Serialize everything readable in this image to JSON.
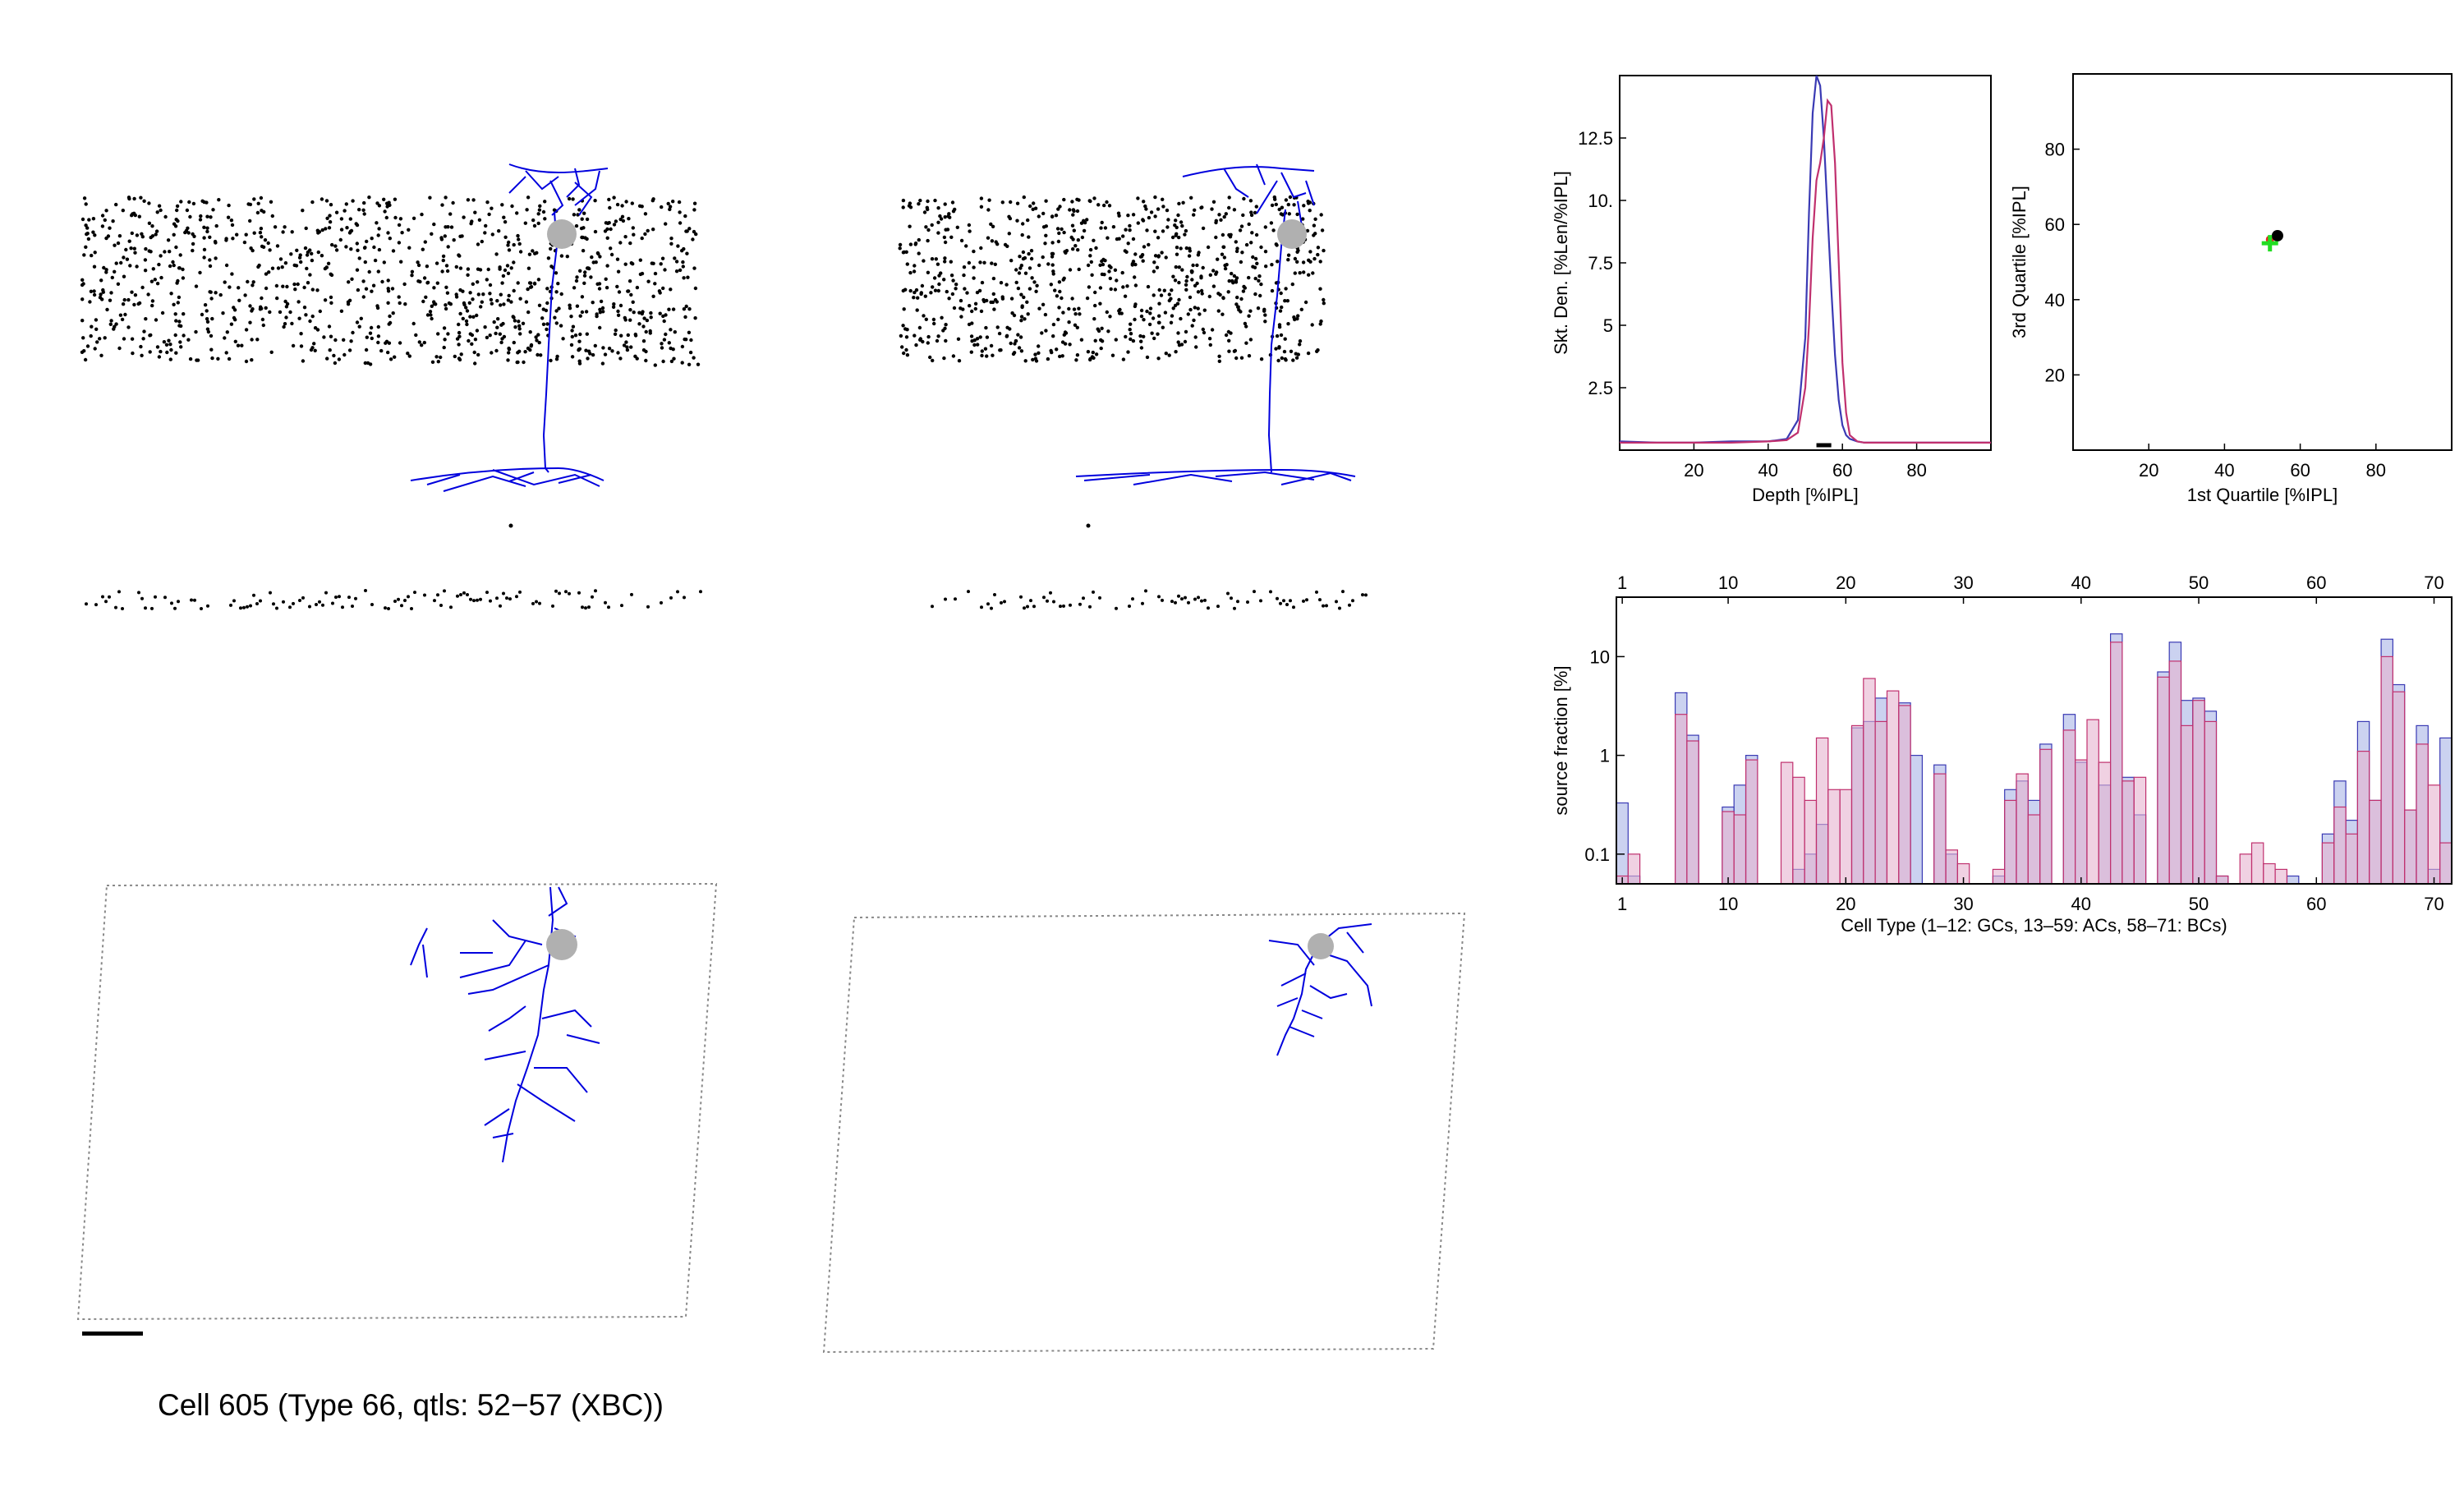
{
  "caption": "Cell 605 (Type 66, qtls: 52−57 (XBC))",
  "colors": {
    "neuron": "#0000dd",
    "soma": "#b0b0b0",
    "dots": "#000000",
    "series_a": "#3a3ab4",
    "series_b": "#c0306e",
    "hist_a_fill": "#a9b4e6",
    "hist_b_fill": "#e6b3cf",
    "centroid_green": "#22dd22",
    "centroid_red": "#ee2222"
  },
  "chart_data": [
    {
      "type": "line",
      "xlabel": "Depth [%IPL]",
      "ylabel": "Skt. Den. [%Len/%IPL]",
      "xticks": [
        20,
        40,
        60,
        80
      ],
      "yticks": [
        2.5,
        5,
        7.5,
        10,
        12.5
      ],
      "ytick_labels": [
        "2.5",
        "5",
        "7.5",
        "10.",
        "12.5"
      ],
      "xlim": [
        0,
        100
      ],
      "ylim": [
        0,
        15
      ],
      "series": [
        {
          "color": "#3a3ab4",
          "x": [
            0,
            10,
            20,
            30,
            40,
            45,
            48,
            50,
            51,
            52,
            53,
            54,
            55,
            56,
            57,
            58,
            59,
            60,
            61,
            62,
            64,
            66,
            70,
            80,
            90,
            100
          ],
          "y": [
            0.35,
            0.3,
            0.3,
            0.35,
            0.35,
            0.45,
            1.2,
            4.5,
            9.5,
            13.5,
            15.0,
            14.6,
            12.5,
            9.5,
            6.5,
            3.8,
            2.0,
            1.0,
            0.6,
            0.45,
            0.35,
            0.3,
            0.3,
            0.3,
            0.3,
            0.3
          ]
        },
        {
          "color": "#c0306e",
          "x": [
            0,
            10,
            20,
            30,
            40,
            45,
            48,
            50,
            51,
            52,
            53,
            54,
            55,
            56,
            57,
            58,
            59,
            60,
            61,
            62,
            64,
            66,
            70,
            80,
            90,
            100
          ],
          "y": [
            0.3,
            0.3,
            0.3,
            0.3,
            0.35,
            0.4,
            0.7,
            2.5,
            5.0,
            8.5,
            10.8,
            11.5,
            12.5,
            14.0,
            13.8,
            11.5,
            7.5,
            3.5,
            1.5,
            0.6,
            0.35,
            0.3,
            0.3,
            0.3,
            0.3,
            0.3
          ]
        }
      ],
      "marker_range": [
        53,
        57
      ]
    },
    {
      "type": "scatter",
      "xlabel": "1st Quartile [%IPL]",
      "ylabel": "3rd Quartile [%IPL]",
      "xticks": [
        20,
        40,
        60,
        80
      ],
      "yticks": [
        20,
        40,
        60,
        80
      ],
      "xlim": [
        0,
        100
      ],
      "ylim": [
        0,
        100
      ],
      "points": [
        {
          "x": 52,
          "y": 56,
          "color": "#ee2222"
        },
        {
          "x": 54,
          "y": 57,
          "color": "#000000"
        },
        {
          "x": 52,
          "y": 55,
          "color": "#22dd22"
        }
      ]
    },
    {
      "type": "bar",
      "xlabel": "Cell Type (1–12: GCs, 13–59: ACs, 58–71: BCs)",
      "ylabel": "source fraction [%]",
      "yscale": "log",
      "ylim": [
        0.05,
        40
      ],
      "yticks": [
        0.1,
        1,
        10
      ],
      "ytick_labels": [
        "0.1",
        "1",
        "10"
      ],
      "xticks": [
        1,
        10,
        20,
        30,
        40,
        50,
        60,
        70
      ],
      "categories": [
        1,
        2,
        3,
        4,
        5,
        6,
        7,
        8,
        9,
        10,
        11,
        12,
        13,
        14,
        15,
        16,
        17,
        18,
        19,
        20,
        21,
        22,
        23,
        24,
        25,
        26,
        27,
        28,
        29,
        30,
        31,
        32,
        33,
        34,
        35,
        36,
        37,
        38,
        39,
        40,
        41,
        42,
        43,
        44,
        45,
        46,
        47,
        48,
        49,
        50,
        51,
        52,
        53,
        54,
        55,
        56,
        57,
        58,
        59,
        60,
        61,
        62,
        63,
        64,
        65,
        66,
        67,
        68,
        69,
        70,
        71
      ],
      "series": [
        {
          "color": "#a9b4e6",
          "values": [
            0.33,
            0.06,
            0,
            0,
            0,
            4.3,
            1.6,
            0,
            0,
            0.3,
            0.5,
            1.0,
            0,
            0,
            0,
            0.07,
            0.1,
            0.2,
            0,
            0,
            1.9,
            2.2,
            3.8,
            0,
            3.4,
            1.0,
            0,
            0.8,
            0.1,
            0,
            0,
            0,
            0.06,
            0.45,
            0.55,
            0.35,
            1.3,
            0,
            2.6,
            0.85,
            0,
            0.5,
            17.0,
            0.6,
            0.25,
            0,
            7.0,
            14.0,
            3.6,
            3.8,
            2.8,
            0.06,
            0,
            0,
            0,
            0,
            0,
            0.06,
            0,
            0,
            0.16,
            0.55,
            0.22,
            2.2,
            0.35,
            15.0,
            5.2,
            0.28,
            2.0,
            0.07,
            1.5
          ]
        },
        {
          "color": "#e6b3cf",
          "values": [
            0.06,
            0.1,
            0,
            0,
            0,
            2.6,
            1.4,
            0,
            0,
            0.27,
            0.25,
            0.9,
            0,
            0,
            0.85,
            0.6,
            0.35,
            1.5,
            0.45,
            0.45,
            2.0,
            6.0,
            2.2,
            4.5,
            3.2,
            0,
            0,
            0.65,
            0.11,
            0.08,
            0,
            0,
            0.07,
            0.35,
            0.65,
            0.25,
            1.15,
            0,
            1.8,
            0.9,
            2.3,
            0.85,
            14.0,
            0.55,
            0.6,
            0,
            6.2,
            9.0,
            2.0,
            3.6,
            2.2,
            0.06,
            0,
            0.1,
            0.13,
            0.08,
            0.07,
            0,
            0,
            0,
            0.13,
            0.3,
            0.16,
            1.1,
            0.35,
            10.0,
            4.4,
            0.28,
            1.3,
            0.5,
            0.13
          ]
        }
      ]
    }
  ]
}
